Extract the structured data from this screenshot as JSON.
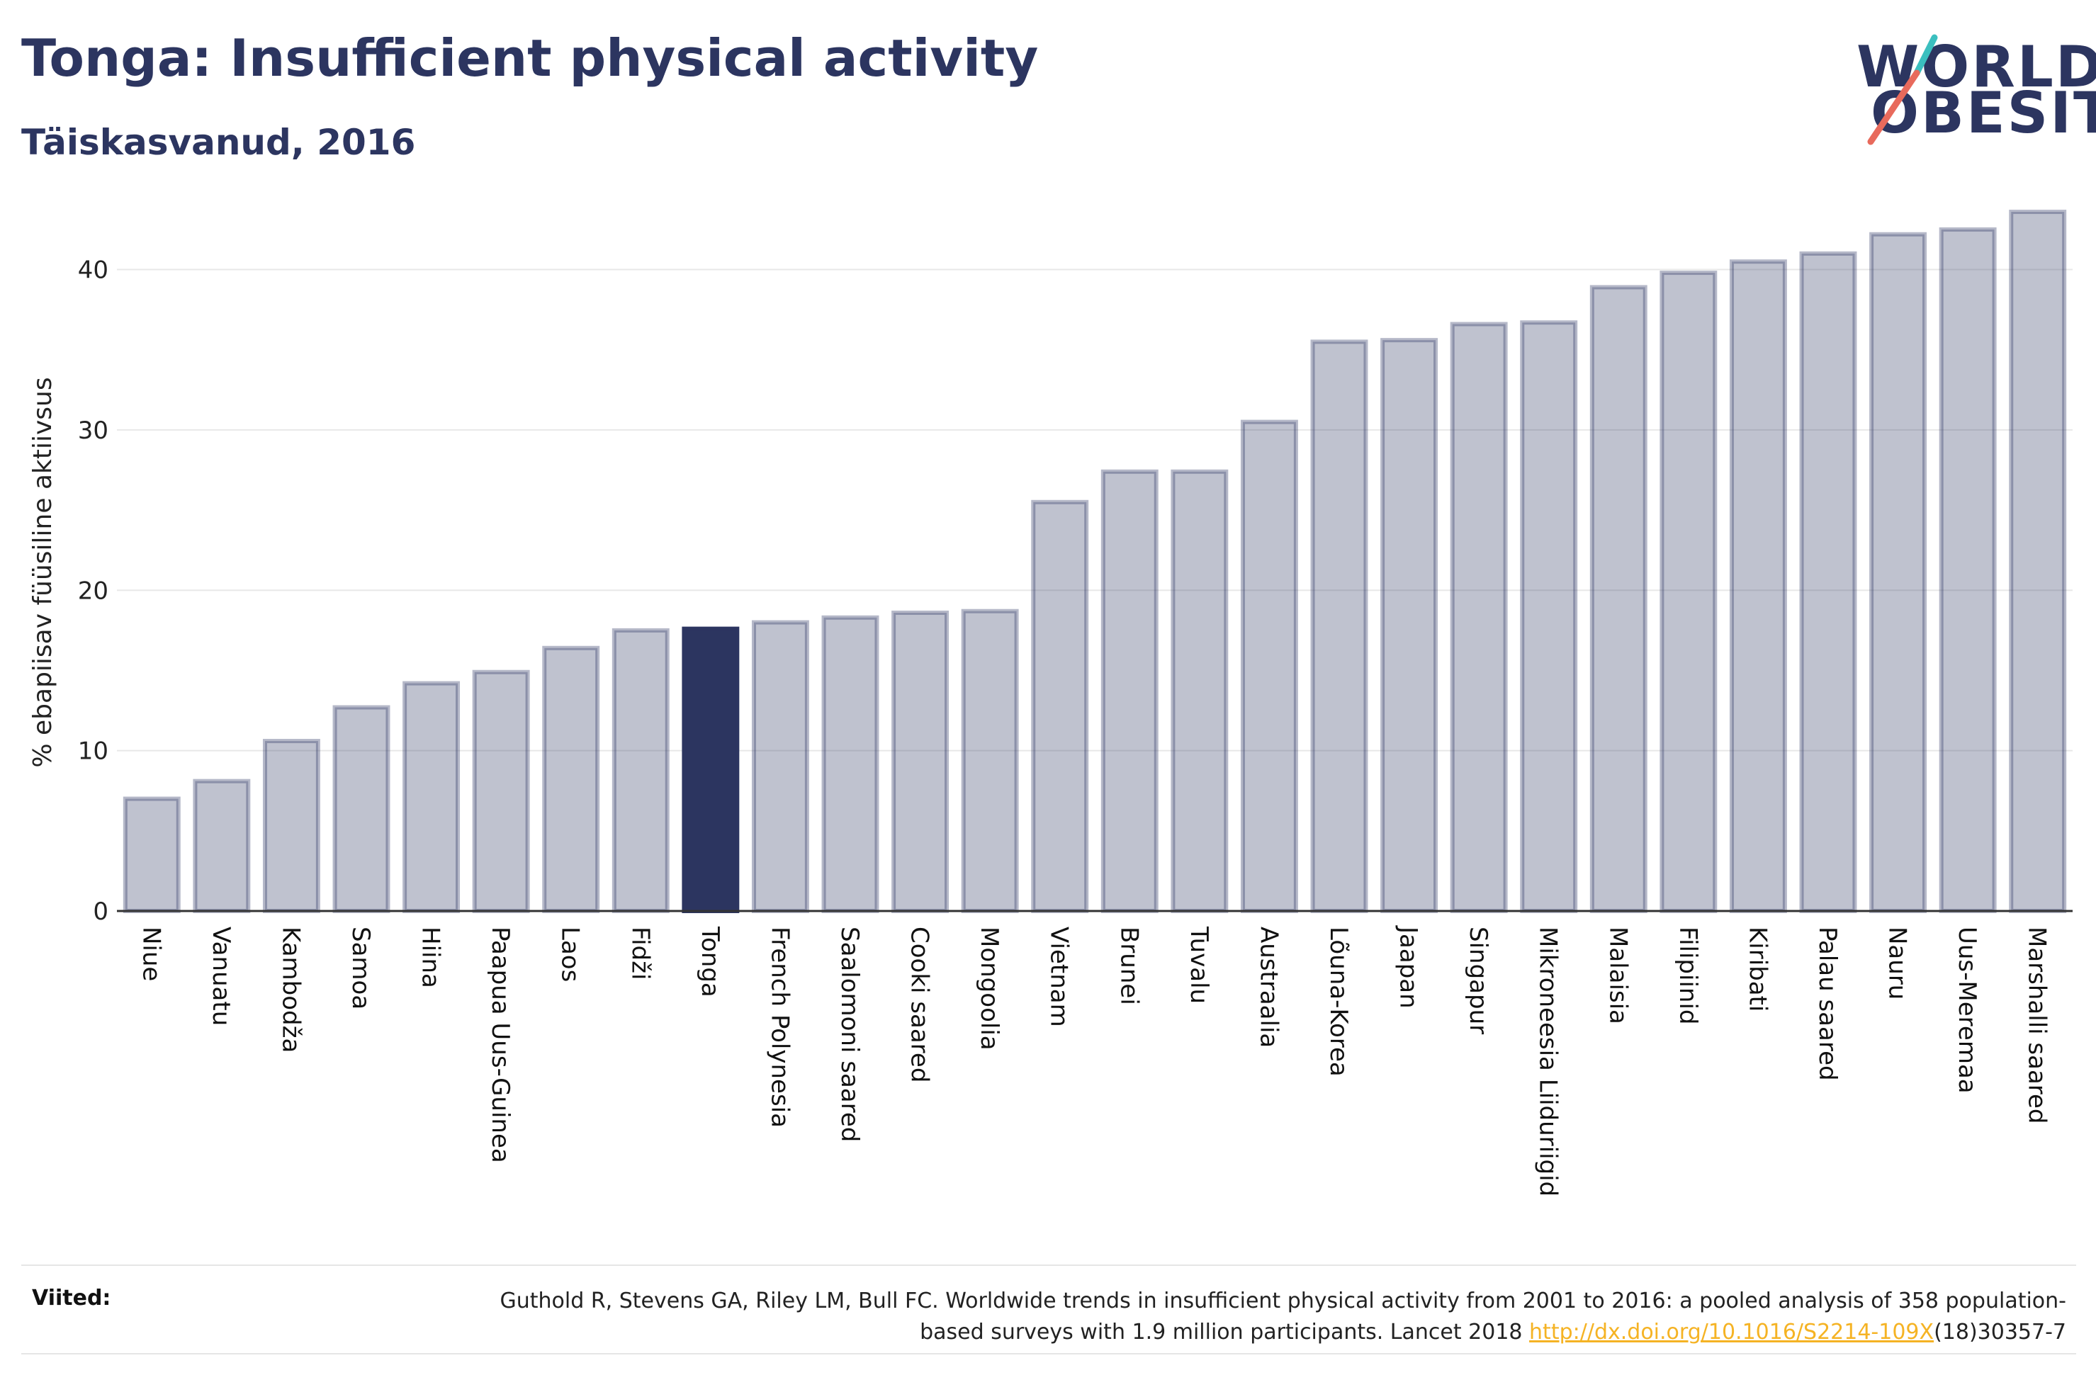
{
  "header": {
    "title": "Tonga: Insufficient physical activity",
    "subtitle": "Täiskasvanud, 2016"
  },
  "logo": {
    "line1": "WORLD",
    "line2": "OBESITY"
  },
  "colors": {
    "bar": "#2c3560",
    "bar_highlight": "#2c3560",
    "grid": "#e8e8e8",
    "title": "#2c3560",
    "logo_slash_top": "#3bbfbf",
    "logo_slash_bottom": "#e86a5c",
    "link": "#f5b324"
  },
  "chart_data": {
    "type": "bar",
    "title": "Tonga: Insufficient physical activity",
    "subtitle": "Täiskasvanud, 2016",
    "xlabel": "",
    "ylabel": "% ebapiisav füüsiline aktiivsus",
    "ylim": [
      0,
      44
    ],
    "yticks": [
      0,
      10,
      20,
      30,
      40
    ],
    "grid": true,
    "highlight": "Tonga",
    "categories": [
      "Niue",
      "Vanuatu",
      "Kambodža",
      "Samoa",
      "Hiina",
      "Paapua Uus-Guinea",
      "Laos",
      "Fidži",
      "Tonga",
      "French Polynesia",
      "Saalomoni saared",
      "Cooki saared",
      "Mongoolia",
      "Vietnam",
      "Brunei",
      "Tuvalu",
      "Austraalia",
      "Lõuna-Korea",
      "Jaapan",
      "Singapur",
      "Mikroneesia Liiduriigid",
      "Malaisia",
      "Filipiinid",
      "Kiribati",
      "Palau saared",
      "Nauru",
      "Uus-Meremaa",
      "Marshalli saared"
    ],
    "values": [
      7.0,
      8.1,
      10.6,
      12.7,
      14.2,
      14.9,
      16.4,
      17.5,
      17.6,
      18.0,
      18.3,
      18.6,
      18.7,
      25.5,
      27.4,
      27.4,
      30.5,
      35.5,
      35.6,
      36.6,
      36.7,
      38.9,
      39.8,
      40.5,
      41.0,
      42.2,
      42.5,
      43.6
    ]
  },
  "references": {
    "label": "Viited:",
    "text_before_link": "Guthold R, Stevens GA, Riley LM, Bull FC. Worldwide trends in insufficient physical activity from 2001 to 2016: a pooled analysis of 358 population-based surveys with 1.9 million participants. Lancet 2018 ",
    "link_text": "http://dx.doi.org/10.1016/S2214-109X",
    "text_after_link": "(18)30357-7"
  }
}
